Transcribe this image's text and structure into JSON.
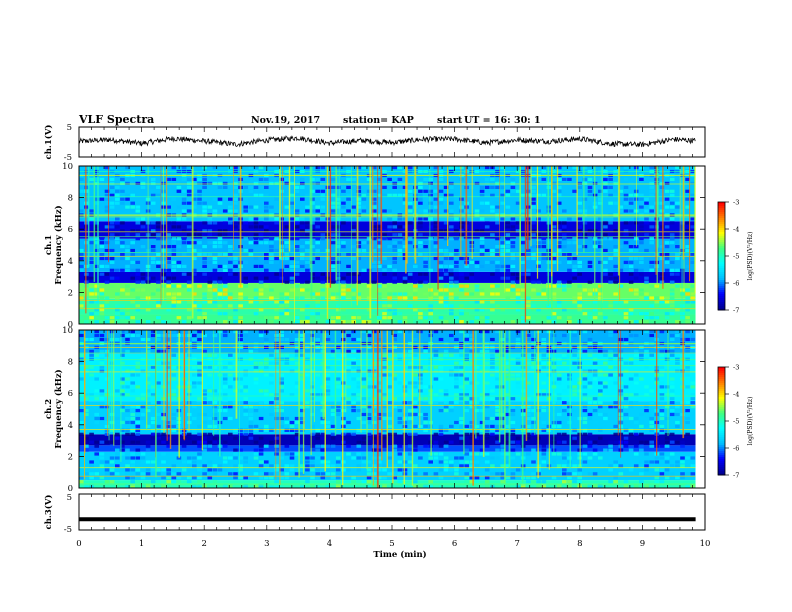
{
  "header": {
    "title": "VLF Spectra",
    "date": "Nov.19, 2017",
    "station": "station= KAP",
    "start_label": "start",
    "start_time": "UT =   16: 30: 1"
  },
  "colors": {
    "waveform": "#000000",
    "colormap": [
      "#00008f",
      "#0000ff",
      "#00bfff",
      "#00ffff",
      "#40ff80",
      "#ffff00",
      "#ff8000",
      "#ff0000",
      "#ffffff"
    ]
  },
  "chart_data": [
    {
      "type": "line",
      "name": "ch1-waveform",
      "ylabel": "ch.1(V)",
      "ylim": [
        -5,
        5
      ],
      "yticks": [
        "5",
        "-5"
      ],
      "xlim": [
        0,
        9.85
      ],
      "description": "noisy signal fluctuating roughly between -2 and 2 V",
      "x": [
        0,
        0.5,
        1,
        1.5,
        2,
        2.5,
        3,
        3.5,
        4,
        4.5,
        5,
        5.5,
        6,
        6.5,
        7,
        7.5,
        8,
        8.5,
        9,
        9.5,
        9.85
      ],
      "y": [
        0.2,
        0.8,
        -0.5,
        1.2,
        0.3,
        -0.8,
        0.6,
        1.4,
        -0.4,
        0.5,
        -0.2,
        0.9,
        1.0,
        -0.3,
        0.7,
        0.2,
        1.1,
        -0.6,
        -0.9,
        0.9,
        0.4
      ]
    },
    {
      "type": "heatmap",
      "name": "ch1-spectrogram",
      "ylabel": "ch.1\nFrequency (kHz)",
      "ylim": [
        0,
        10
      ],
      "yticks": [
        "0",
        "2",
        "4",
        "6",
        "8",
        "10"
      ],
      "xlim": [
        0,
        9.85
      ],
      "value_range": [
        -7,
        -3
      ],
      "colorbar_label": "log(PSD)(V²/Hz)",
      "colorbar_ticks": [
        "-3",
        "-4",
        "-5",
        "-6",
        "-7"
      ],
      "bands": [
        {
          "f_lo": 0.0,
          "f_hi": 0.6,
          "level": -4.8
        },
        {
          "f_lo": 0.6,
          "f_hi": 1.6,
          "level": -4.9
        },
        {
          "f_lo": 1.6,
          "f_hi": 2.6,
          "level": -4.6
        },
        {
          "f_lo": 2.6,
          "f_hi": 3.3,
          "level": -6.6
        },
        {
          "f_lo": 3.3,
          "f_hi": 5.4,
          "level": -5.9
        },
        {
          "f_lo": 5.4,
          "f_hi": 6.5,
          "level": -6.6
        },
        {
          "f_lo": 6.5,
          "f_hi": 10.0,
          "level": -5.8
        }
      ]
    },
    {
      "type": "heatmap",
      "name": "ch2-spectrogram",
      "ylabel": "ch.2\nFrequency (kHz)",
      "ylim": [
        0,
        10
      ],
      "yticks": [
        "0",
        "2",
        "4",
        "6",
        "8",
        "10"
      ],
      "xlim": [
        0,
        9.85
      ],
      "value_range": [
        -7,
        -3
      ],
      "colorbar_label": "log(PSD)(V²/Hz)",
      "colorbar_ticks": [
        "-3",
        "-4",
        "-5",
        "-6",
        "-7"
      ],
      "bands": [
        {
          "f_lo": 0.0,
          "f_hi": 0.5,
          "level": -5.0
        },
        {
          "f_lo": 0.5,
          "f_hi": 2.3,
          "level": -5.7
        },
        {
          "f_lo": 2.3,
          "f_hi": 2.7,
          "level": -6.2
        },
        {
          "f_lo": 2.7,
          "f_hi": 3.4,
          "level": -6.8
        },
        {
          "f_lo": 3.4,
          "f_hi": 5.5,
          "level": -5.7
        },
        {
          "f_lo": 5.5,
          "f_hi": 8.5,
          "level": -5.4
        },
        {
          "f_lo": 8.5,
          "f_hi": 10.0,
          "level": -5.9
        }
      ]
    },
    {
      "type": "line",
      "name": "ch3-waveform",
      "ylabel": "ch.3(V)",
      "ylim": [
        -5,
        5
      ],
      "yticks": [
        "5",
        "-5"
      ],
      "xlim": [
        0,
        9.85
      ],
      "description": "flat line near -2 V",
      "x": [
        0,
        9.85
      ],
      "y": [
        -2,
        -2
      ]
    }
  ],
  "x_axis": {
    "label": "Time  (min)",
    "ticks": [
      "0",
      "1",
      "2",
      "3",
      "4",
      "5",
      "6",
      "7",
      "8",
      "9",
      "10"
    ],
    "xlim": [
      0,
      10
    ]
  }
}
